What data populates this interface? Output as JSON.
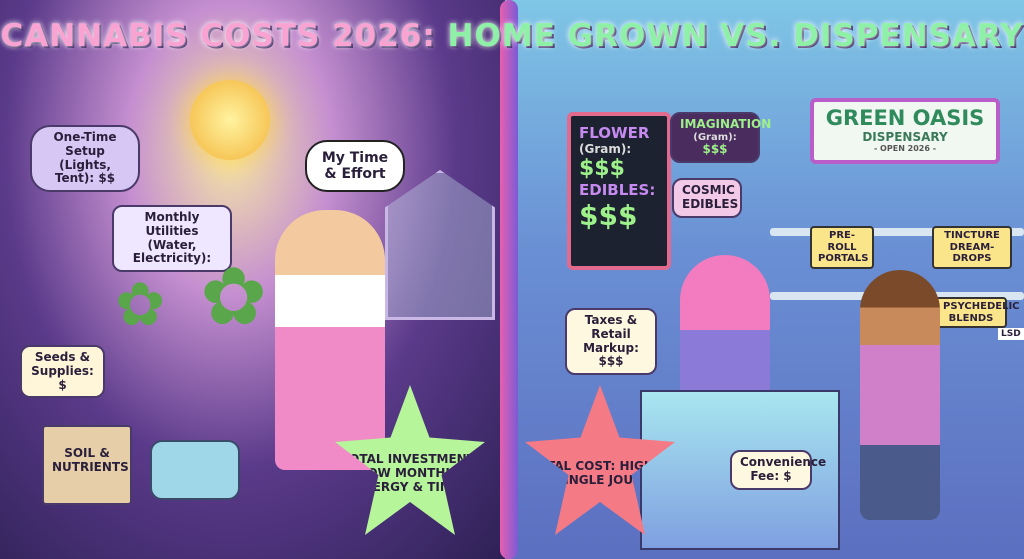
{
  "title": {
    "part1": "CANNABIS COSTS 2026:",
    "part2": "HOME GROWN VS. DISPENSARY"
  },
  "home": {
    "setup": "One-Time Setup (Lights, Tent): $$",
    "utilities": "Monthly Utilities (Water, Electricity):",
    "time": "My Time & Effort",
    "seeds": "Seeds & Supplies: $",
    "soil": "SOIL & NUTRIENTS",
    "total": "TOTAL INVESTMENT: LOW MONTHLY ENERGY & TIME!"
  },
  "dispensary": {
    "sign": {
      "flower": "FLOWER",
      "flower_unit": "(Gram):",
      "flower_price": "$$$",
      "edibles": "EDIBLES:",
      "edibles_price": "$$$"
    },
    "imagination": {
      "name": "IMAGINATION",
      "unit": "(Gram):",
      "price": "$$$"
    },
    "cosmic": "COSMIC EDIBLES",
    "store": {
      "name": "GREEN OASIS",
      "sub": "DISPENSARY",
      "open": "- OPEN 2026 -"
    },
    "preroll": "PRE-ROLL PORTALS",
    "tincture": "TINCTURE DREAM-DROPS",
    "psychedelic": "PSYCHEDELIC BLENDS",
    "lsd": "LSD",
    "taxes": "Taxes & Retail Markup: $$$",
    "convenience": "Convenience Fee: $",
    "total": "TOTAL COST: HIGHER PER SINGLE JOURNEY!"
  },
  "colors": {
    "title_pink": "#f8a3d2",
    "title_green": "#8ff0a8",
    "star_green": "#b6f59a",
    "star_red": "#f47a86"
  }
}
